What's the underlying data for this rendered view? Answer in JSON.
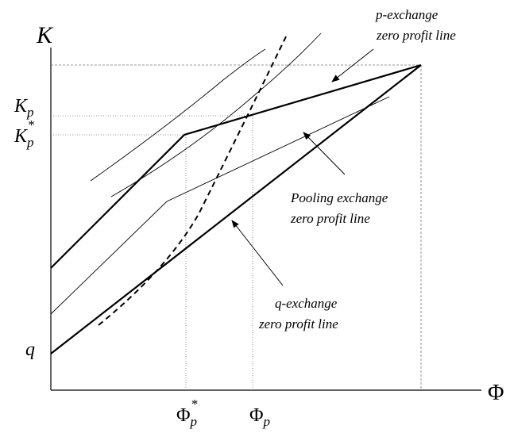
{
  "axes": {
    "y_label": "K",
    "x_label": "Φ"
  },
  "y_ticks": {
    "kp_main": "K",
    "kp_sub": "p",
    "kpstar_main": "K",
    "kpstar_sub": "p",
    "kpstar_sup": "*",
    "q": "q"
  },
  "x_ticks": {
    "phistar_main": "Φ",
    "phistar_sub": "p",
    "phistar_sup": "*",
    "phi_main": "Φ",
    "phi_sub": "p"
  },
  "annotations": {
    "p_exchange_line1": "p-exchange",
    "p_exchange_line2": "zero profit line",
    "pooling_line1": "Pooling exchange",
    "pooling_line2": "zero profit line",
    "q_exchange_line1": "q-exchange",
    "q_exchange_line2": "zero profit line"
  }
}
